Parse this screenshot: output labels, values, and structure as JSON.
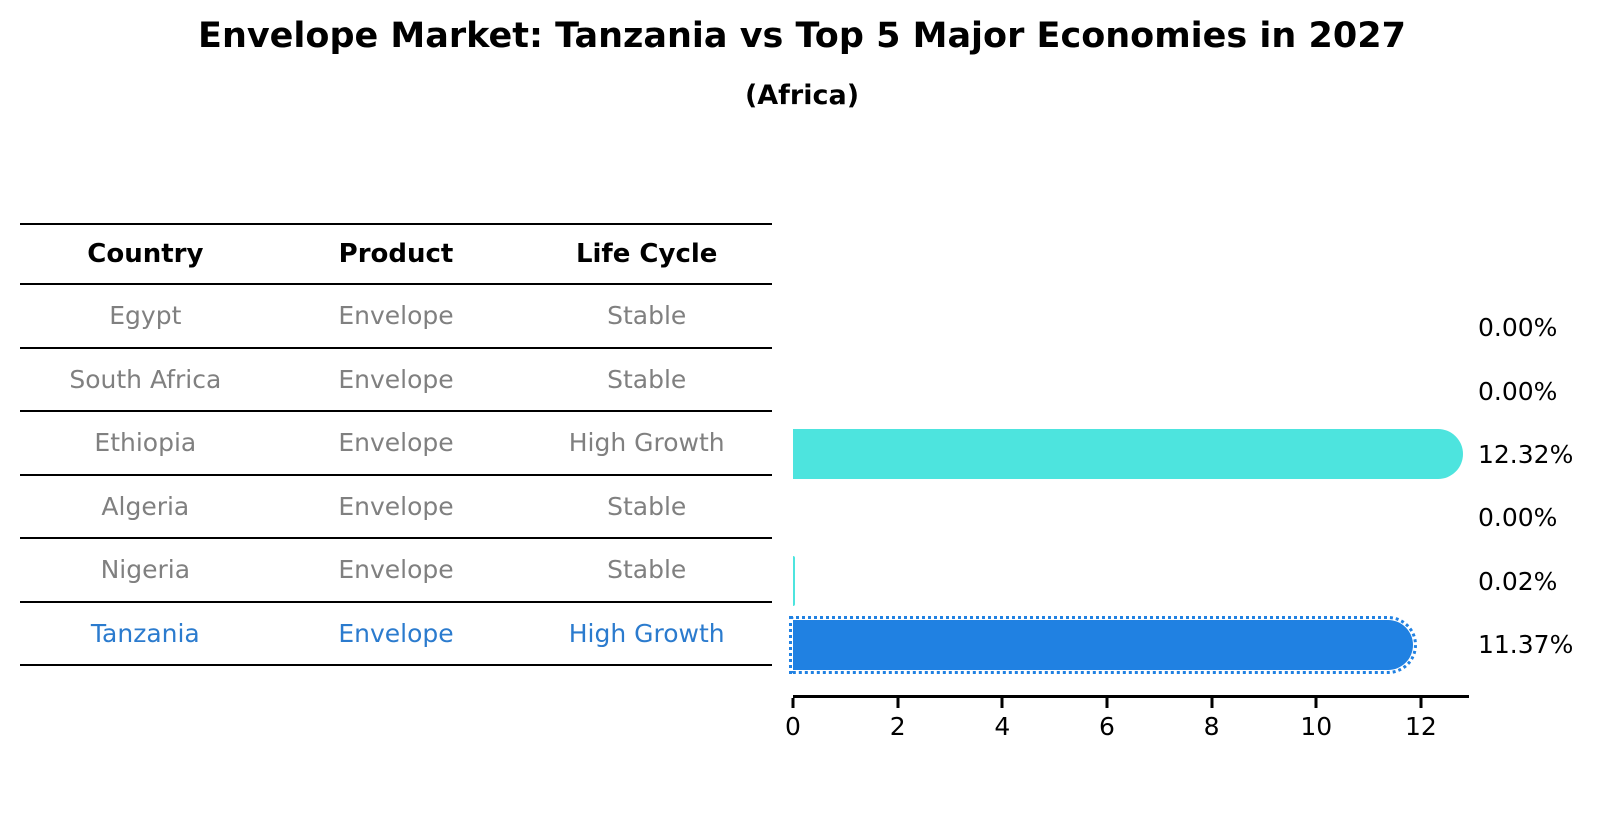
{
  "chart_data": {
    "type": "bar",
    "orientation": "horizontal",
    "title": "Envelope Market: Tanzania vs Top 5 Major Economies in 2027",
    "subtitle": "(Africa)",
    "categories": [
      "Egypt",
      "South Africa",
      "Ethiopia",
      "Algeria",
      "Nigeria",
      "Tanzania"
    ],
    "values": [
      0.0,
      0.0,
      12.32,
      0.0,
      0.02,
      11.37
    ],
    "value_labels": [
      "0.00%",
      "0.00%",
      "12.32%",
      "0.00%",
      "0.02%",
      "11.37%"
    ],
    "xlabel": "",
    "ylabel": "",
    "xlim": [
      0,
      12.9
    ],
    "xticks": [
      0,
      2,
      4,
      6,
      8,
      10,
      12
    ],
    "grid": false,
    "legend": "none",
    "highlight_category": "Tanzania",
    "bar_color_default": "#4de4de",
    "bar_color_highlight": "#2081e2"
  },
  "table": {
    "headers": [
      "Country",
      "Product",
      "Life Cycle"
    ],
    "rows": [
      {
        "country": "Egypt",
        "product": "Envelope",
        "life_cycle": "Stable",
        "highlighted": false
      },
      {
        "country": "South Africa",
        "product": "Envelope",
        "life_cycle": "Stable",
        "highlighted": false
      },
      {
        "country": "Ethiopia",
        "product": "Envelope",
        "life_cycle": "High Growth",
        "highlighted": false
      },
      {
        "country": "Algeria",
        "product": "Envelope",
        "life_cycle": "Stable",
        "highlighted": false
      },
      {
        "country": "Nigeria",
        "product": "Envelope",
        "life_cycle": "Stable",
        "highlighted": false
      },
      {
        "country": "Tanzania",
        "product": "Envelope",
        "life_cycle": "High Growth",
        "highlighted": true
      }
    ]
  },
  "colors": {
    "bar_teal": "#4de4de",
    "bar_blue": "#2081e2",
    "highlight_text": "#2b7bce",
    "muted_text": "#808080",
    "heading_text": "#000000"
  }
}
